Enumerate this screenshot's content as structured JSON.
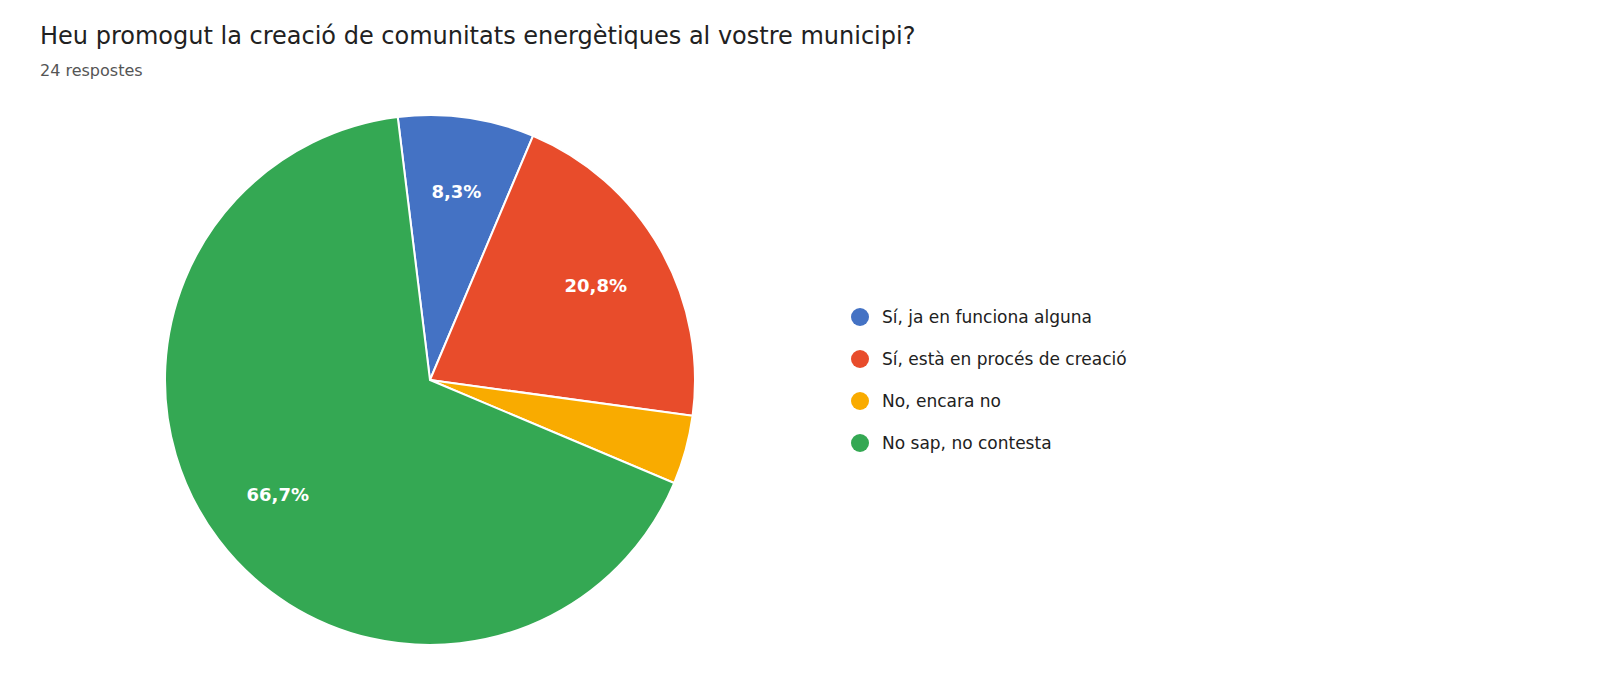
{
  "chart_data": {
    "type": "pie",
    "title": "Heu promogut la creació de comunitats energètiques al vostre municipi?",
    "subtitle": "24 respostes",
    "categories": [
      "Sí, ja en funciona alguna",
      "Sí, està en procés de creació",
      "No, encara no",
      "No sap, no contesta"
    ],
    "values": [
      8.3,
      20.8,
      4.2,
      66.7
    ],
    "value_labels": [
      "8,3%",
      "20,8%",
      null,
      "66,7%"
    ],
    "colors": [
      "#4472C4",
      "#E84C2B",
      "#F9AB00",
      "#34A853"
    ],
    "data_labels": true,
    "legend": "right"
  }
}
